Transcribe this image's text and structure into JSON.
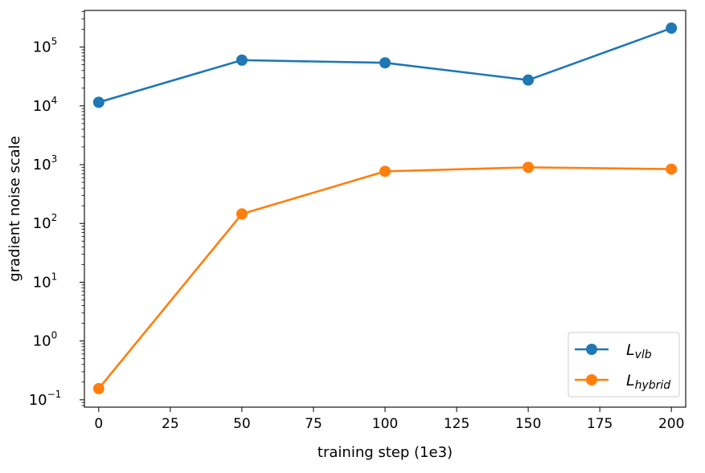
{
  "chart_data": {
    "type": "line",
    "title": "",
    "xlabel": "training step (1e3)",
    "ylabel": "gradient noise scale",
    "xlim": [
      -5,
      205
    ],
    "ylim": [
      0.075,
      420000
    ],
    "yscale": "log",
    "x_ticks": [
      0,
      25,
      50,
      75,
      100,
      125,
      150,
      175,
      200
    ],
    "y_ticks": [
      {
        "value": 0.1,
        "base": "10",
        "exp": "−1"
      },
      {
        "value": 1,
        "base": "10",
        "exp": "0"
      },
      {
        "value": 10,
        "base": "10",
        "exp": "1"
      },
      {
        "value": 100,
        "base": "10",
        "exp": "2"
      },
      {
        "value": 1000,
        "base": "10",
        "exp": "3"
      },
      {
        "value": 10000,
        "base": "10",
        "exp": "4"
      },
      {
        "value": 100000,
        "base": "10",
        "exp": "5"
      }
    ],
    "grid": false,
    "legend_position": "lower-right",
    "x": [
      0,
      50,
      100,
      150,
      200
    ],
    "series": [
      {
        "name": "L",
        "name_sub": "vlb",
        "color": "#1f77b4",
        "values": [
          11500,
          60000,
          54000,
          27500,
          210000
        ]
      },
      {
        "name": "L",
        "name_sub": "hybrid",
        "color": "#ff7f0e",
        "values": [
          0.155,
          145,
          770,
          900,
          840
        ]
      }
    ]
  }
}
